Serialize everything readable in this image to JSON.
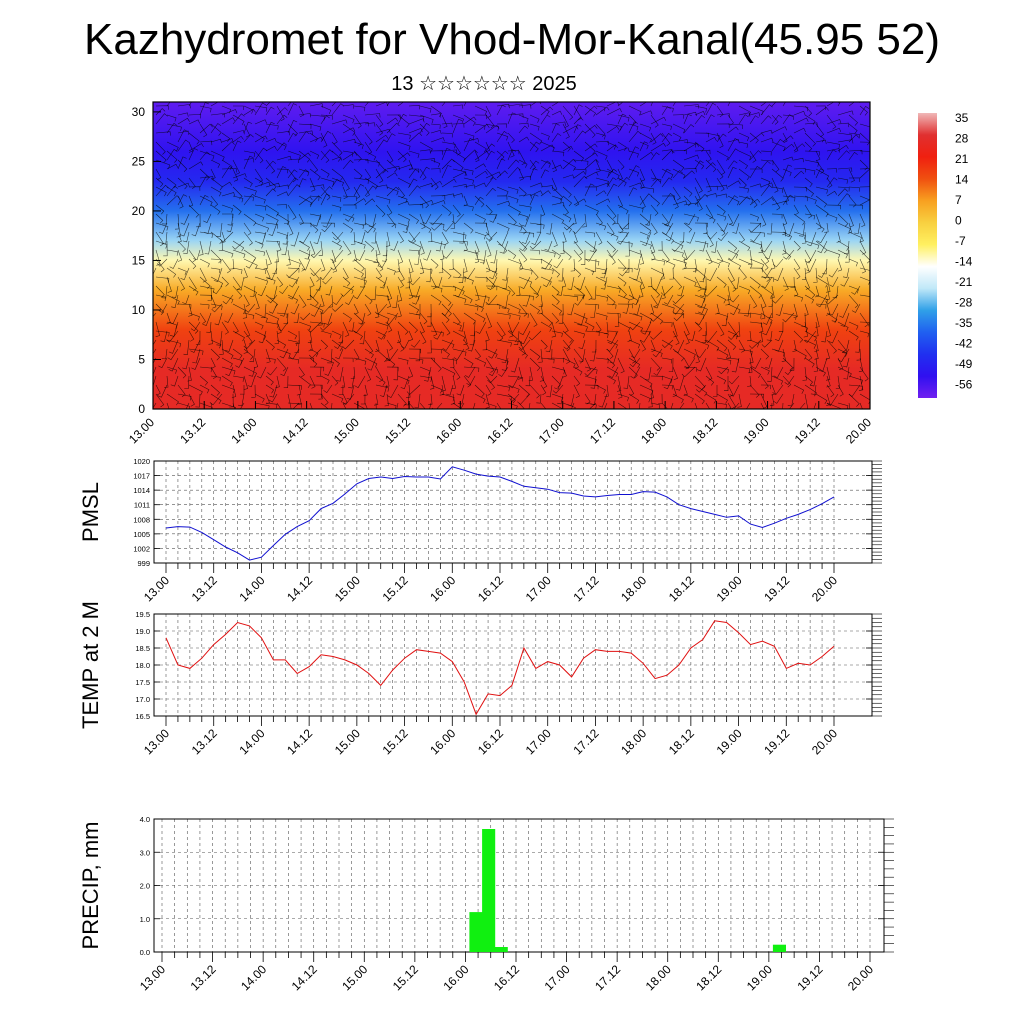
{
  "header": {
    "title": "Kazhydromet for Vhod-Mor-Kanal(45.95 52)",
    "subtitle": "13 ☆☆☆☆☆☆ 2025"
  },
  "colors": {
    "pmsl_line": "#1010d0",
    "temp_line": "#e01010",
    "precip_bar": "#10f010",
    "axis": "#000000"
  },
  "chart_data": [
    {
      "type": "heatmap",
      "title": "Kazhydromet for Vhod-Mor-Kanal(45.95 52)",
      "subtitle": "13 ☆☆☆☆☆☆ 2025",
      "x_tick_labels": [
        "13.00",
        "13.12",
        "14.00",
        "14.12",
        "15.00",
        "15.12",
        "16.00",
        "16.12",
        "17.00",
        "17.12",
        "18.00",
        "18.12",
        "19.00",
        "19.12",
        "20.00"
      ],
      "y_ticks": [
        0,
        5,
        10,
        15,
        20,
        25,
        30
      ],
      "ylim": [
        0,
        31
      ],
      "colorbar_labels": [
        "35",
        "28",
        "21",
        "14",
        "7",
        "0",
        "-7",
        "-14",
        "-21",
        "-28",
        "-35",
        "-42",
        "-49",
        "-56"
      ],
      "colorbar_colors": [
        "#f0b8b8",
        "#e03030",
        "#f02010",
        "#f05010",
        "#f8a020",
        "#f8d040",
        "#fff060",
        "#ffffff",
        "#c0e8f8",
        "#30a0e8",
        "#2060f0",
        "#2030f0",
        "#3010f0",
        "#7020f0"
      ],
      "profile_by_height": [
        {
          "height": 0,
          "value": 26
        },
        {
          "height": 4,
          "value": 26
        },
        {
          "height": 8,
          "value": 16
        },
        {
          "height": 12,
          "value": 5
        },
        {
          "height": 15,
          "value": -12
        },
        {
          "height": 17,
          "value": -25
        },
        {
          "height": 20,
          "value": -36
        },
        {
          "height": 23,
          "value": -47
        },
        {
          "height": 26,
          "value": -52
        },
        {
          "height": 31,
          "value": -58
        }
      ],
      "overlay": "wind barbs"
    },
    {
      "type": "line",
      "ylabel": "PMSL",
      "x_tick_labels": [
        "13.00",
        "13.12",
        "14.00",
        "14.12",
        "15.00",
        "15.12",
        "16.00",
        "16.12",
        "17.00",
        "17.12",
        "18.00",
        "18.12",
        "19.00",
        "19.12",
        "20.00"
      ],
      "y_tick_labels": [
        "999",
        "1002",
        "1005",
        "1008",
        "1011",
        "1014",
        "1017",
        "1020"
      ],
      "ylim": [
        999,
        1020
      ],
      "x": [
        0,
        0.125,
        0.25,
        0.375,
        0.5,
        0.625,
        0.75,
        0.875,
        1,
        1.125,
        1.25,
        1.375,
        1.5,
        1.625,
        1.75,
        1.875,
        2,
        2.125,
        2.25,
        2.375,
        2.5,
        2.625,
        2.75,
        2.875,
        3,
        3.125,
        3.25,
        3.375,
        3.5,
        3.625,
        3.75,
        3.875,
        4,
        4.125,
        4.25,
        4.375,
        4.5,
        4.625,
        4.75,
        4.875,
        5,
        5.125,
        5.25,
        5.375,
        5.5,
        5.625,
        5.75,
        5.875,
        6,
        6.125,
        6.25,
        6.375,
        6.5,
        6.625,
        6.75,
        6.875,
        7
      ],
      "values": [
        1006.2,
        1006.5,
        1006.4,
        1005.3,
        1003.8,
        1002.3,
        1001.1,
        999.6,
        1000.2,
        1002.6,
        1004.9,
        1006.5,
        1007.7,
        1010.2,
        1011.3,
        1013.2,
        1015.3,
        1016.4,
        1016.7,
        1016.4,
        1016.8,
        1016.7,
        1016.7,
        1016.3,
        1018.8,
        1018.1,
        1017.3,
        1016.9,
        1016.7,
        1015.8,
        1014.8,
        1014.5,
        1014.2,
        1013.5,
        1013.4,
        1012.8,
        1012.6,
        1012.9,
        1013.1,
        1013.1,
        1013.7,
        1013.6,
        1012.6,
        1011.0,
        1010.2,
        1009.6,
        1009.0,
        1008.4,
        1008.7,
        1007.0,
        1006.3,
        1007.2,
        1008.2,
        1009.0,
        1010.0,
        1011.2,
        1012.6
      ]
    },
    {
      "type": "line",
      "ylabel": "TEMP at 2 M",
      "x_tick_labels": [
        "13.00",
        "13.12",
        "14.00",
        "14.12",
        "15.00",
        "15.12",
        "16.00",
        "16.12",
        "17.00",
        "17.12",
        "18.00",
        "18.12",
        "19.00",
        "19.12",
        "20.00"
      ],
      "y_tick_labels": [
        "16.5",
        "17.0",
        "17.5",
        "18.0",
        "18.5",
        "19.0",
        "19.5"
      ],
      "ylim": [
        16.5,
        19.5
      ],
      "x": [
        0,
        0.125,
        0.25,
        0.375,
        0.5,
        0.625,
        0.75,
        0.875,
        1,
        1.125,
        1.25,
        1.375,
        1.5,
        1.625,
        1.75,
        1.875,
        2,
        2.125,
        2.25,
        2.375,
        2.5,
        2.625,
        2.75,
        2.875,
        3,
        3.125,
        3.25,
        3.375,
        3.5,
        3.625,
        3.75,
        3.875,
        4,
        4.125,
        4.25,
        4.375,
        4.5,
        4.625,
        4.75,
        4.875,
        5,
        5.125,
        5.25,
        5.375,
        5.5,
        5.625,
        5.75,
        5.875,
        6,
        6.125,
        6.25,
        6.375,
        6.5,
        6.625,
        6.75,
        6.875,
        7
      ],
      "values": [
        18.8,
        18.0,
        17.9,
        18.2,
        18.6,
        18.9,
        19.25,
        19.15,
        18.8,
        18.15,
        18.15,
        17.75,
        17.95,
        18.3,
        18.25,
        18.15,
        18.0,
        17.75,
        17.4,
        17.85,
        18.2,
        18.45,
        18.4,
        18.35,
        18.1,
        17.5,
        16.55,
        17.15,
        17.1,
        17.4,
        18.5,
        17.9,
        18.1,
        18.0,
        17.65,
        18.2,
        18.45,
        18.4,
        18.4,
        18.35,
        18.05,
        17.6,
        17.7,
        18.0,
        18.5,
        18.75,
        19.3,
        19.25,
        18.95,
        18.6,
        18.7,
        18.55,
        17.9,
        18.05,
        18.0,
        18.25,
        18.55
      ]
    },
    {
      "type": "bar",
      "ylabel": "PRECIP, mm",
      "x_tick_labels": [
        "13.00",
        "13.12",
        "14.00",
        "14.12",
        "15.00",
        "15.12",
        "16.00",
        "16.12",
        "17.00",
        "17.12",
        "18.00",
        "18.12",
        "19.00",
        "19.12",
        "20.00"
      ],
      "y_tick_labels": [
        "0.0",
        "1.0",
        "2.0",
        "3.0",
        "4.0"
      ],
      "ylim": [
        0,
        4.0
      ],
      "bars": [
        {
          "x": 3.0,
          "value": 1.2
        },
        {
          "x": 3.125,
          "value": 3.7
        },
        {
          "x": 3.25,
          "value": 0.15
        },
        {
          "x": 6.0,
          "value": 0.22
        }
      ]
    }
  ]
}
